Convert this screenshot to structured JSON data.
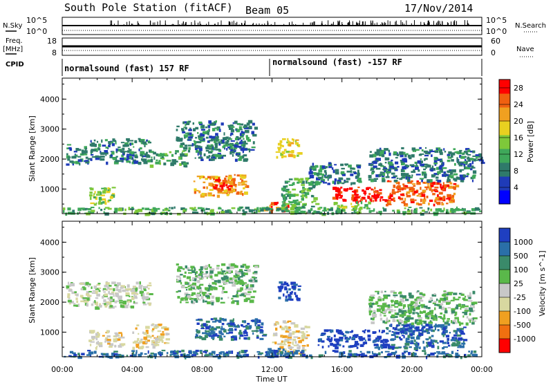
{
  "header": {
    "station": "South Pole Station (fitACF)",
    "beam": "Beam 05",
    "date": "17/Nov/2014"
  },
  "top_panels": {
    "nsky_label": "N.Sky",
    "nsky_ticks": [
      "10^5",
      "10^0"
    ],
    "nsearch_label": "N.Search",
    "nsearch_ticks": [
      "10^5",
      "10^0"
    ],
    "freq_label": "Freq.",
    "freq_unit": "[MHz]",
    "freq_ticks": [
      "18",
      "8"
    ],
    "nave_label": "Nave",
    "nave_ticks": [
      "60",
      "0"
    ],
    "cpid_label": "CPID",
    "cpid_segments": [
      "normalsound (fast) 157 RF",
      "normalsound (fast) -157 RF"
    ]
  },
  "colors": {
    "power_scale": [
      "#0000ff",
      "#1f3bb8",
      "#2f7a6a",
      "#3fa85a",
      "#7ec83a",
      "#e8d020",
      "#f0a020",
      "#f06010",
      "#ff0000"
    ],
    "velocity_scale": [
      "#1f3fc0",
      "#2a6fa8",
      "#3a8a6a",
      "#5ab84a",
      "#c8c8c8",
      "#d8d8a0",
      "#f0a020",
      "#f07010",
      "#ff0000"
    ]
  },
  "chart_data": [
    {
      "type": "heatmap",
      "title": "",
      "xlabel": "",
      "ylabel": "Slant Range [km]",
      "x_ticks": [
        "00:00",
        "04:00",
        "08:00",
        "12:00",
        "16:00",
        "20:00",
        "00:00"
      ],
      "y_ticks": [
        "1000",
        "2000",
        "3000",
        "4000"
      ],
      "xlim": [
        0,
        24
      ],
      "ylim": [
        180,
        4700
      ],
      "colorbar": {
        "label": "Power [dB]",
        "ticks": [
          "4",
          "8",
          "12",
          "16",
          "20",
          "24",
          "28"
        ],
        "range": [
          0,
          30
        ]
      },
      "echo_regions": [
        {
          "t0": 0.2,
          "t1": 1.5,
          "r0": 1850,
          "r1": 2500,
          "level": 9
        },
        {
          "t0": 1.5,
          "t1": 5.0,
          "r0": 1900,
          "r1": 2700,
          "level": 8
        },
        {
          "t0": 5.0,
          "t1": 7.0,
          "r0": 1800,
          "r1": 2300,
          "level": 13
        },
        {
          "t0": 6.5,
          "t1": 11.0,
          "r0": 2300,
          "r1": 3300,
          "level": 8
        },
        {
          "t0": 7.5,
          "t1": 10.5,
          "r0": 2000,
          "r1": 2500,
          "level": 8
        },
        {
          "t0": 1.5,
          "t1": 3.0,
          "r0": 500,
          "r1": 1100,
          "level": 14
        },
        {
          "t0": 7.5,
          "t1": 10.5,
          "r0": 800,
          "r1": 1500,
          "level": 22
        },
        {
          "t0": 8.5,
          "t1": 9.5,
          "r0": 1000,
          "r1": 1400,
          "level": 27
        },
        {
          "t0": 12.2,
          "t1": 13.5,
          "r0": 2100,
          "r1": 2700,
          "level": 17
        },
        {
          "t0": 11.5,
          "t1": 13.0,
          "r0": 250,
          "r1": 600,
          "level": 26
        },
        {
          "t0": 12.5,
          "t1": 14.5,
          "r0": 400,
          "r1": 1400,
          "level": 10
        },
        {
          "t0": 15.3,
          "t1": 18.5,
          "r0": 600,
          "r1": 1100,
          "level": 28
        },
        {
          "t0": 14.0,
          "t1": 17.0,
          "r0": 1200,
          "r1": 1900,
          "level": 8
        },
        {
          "t0": 18.5,
          "t1": 22.5,
          "r0": 500,
          "r1": 1300,
          "level": 25
        },
        {
          "t0": 17.5,
          "t1": 23.5,
          "r0": 1300,
          "r1": 2400,
          "level": 9
        },
        {
          "t0": 22.5,
          "t1": 24.0,
          "r0": 1900,
          "r1": 2300,
          "level": 7
        },
        {
          "t0": 0.0,
          "t1": 24.0,
          "r0": 200,
          "r1": 420,
          "level": 11
        },
        {
          "t0": 15.5,
          "t1": 17.5,
          "r0": 400,
          "r1": 600,
          "level": 16
        }
      ]
    },
    {
      "type": "heatmap",
      "title": "",
      "xlabel": "Time UT",
      "ylabel": "Slant Range [km]",
      "x_ticks": [
        "00:00",
        "04:00",
        "08:00",
        "12:00",
        "16:00",
        "20:00",
        "00:00"
      ],
      "y_ticks": [
        "1000",
        "2000",
        "3000",
        "4000"
      ],
      "xlim": [
        0,
        24
      ],
      "ylim": [
        180,
        4700
      ],
      "colorbar": {
        "label": "Velocity [m s^-1]",
        "ticks": [
          "1000",
          "500",
          "100",
          "25",
          "-25",
          "-100",
          "-500",
          "-1000"
        ],
        "range": [
          -1000,
          1000
        ]
      },
      "echo_regions": [
        {
          "t0": 0.2,
          "t1": 5.0,
          "r0": 1850,
          "r1": 2700,
          "level": -30
        },
        {
          "t0": 6.5,
          "t1": 11.0,
          "r0": 2000,
          "r1": 3300,
          "level": 0
        },
        {
          "t0": 1.5,
          "t1": 3.5,
          "r0": 500,
          "r1": 1100,
          "level": -200
        },
        {
          "t0": 4.0,
          "t1": 6.0,
          "r0": 500,
          "r1": 1300,
          "level": -150
        },
        {
          "t0": 7.5,
          "t1": 11.5,
          "r0": 800,
          "r1": 1500,
          "level": 150
        },
        {
          "t0": 12.3,
          "t1": 13.5,
          "r0": 2100,
          "r1": 2700,
          "level": 900
        },
        {
          "t0": 12.0,
          "t1": 14.0,
          "r0": 300,
          "r1": 1400,
          "level": -300
        },
        {
          "t0": 14.5,
          "t1": 18.5,
          "r0": 500,
          "r1": 1100,
          "level": 800
        },
        {
          "t0": 18.5,
          "t1": 23.0,
          "r0": 500,
          "r1": 1300,
          "level": 450
        },
        {
          "t0": 19.0,
          "t1": 21.0,
          "r0": 1000,
          "r1": 1300,
          "level": 900
        },
        {
          "t0": 17.5,
          "t1": 23.5,
          "r0": 1300,
          "r1": 2400,
          "level": 20
        },
        {
          "t0": 0.0,
          "t1": 24.0,
          "r0": 200,
          "r1": 420,
          "level": 200
        },
        {
          "t0": 11.5,
          "t1": 13.0,
          "r0": 200,
          "r1": 500,
          "level": 300
        }
      ]
    }
  ]
}
